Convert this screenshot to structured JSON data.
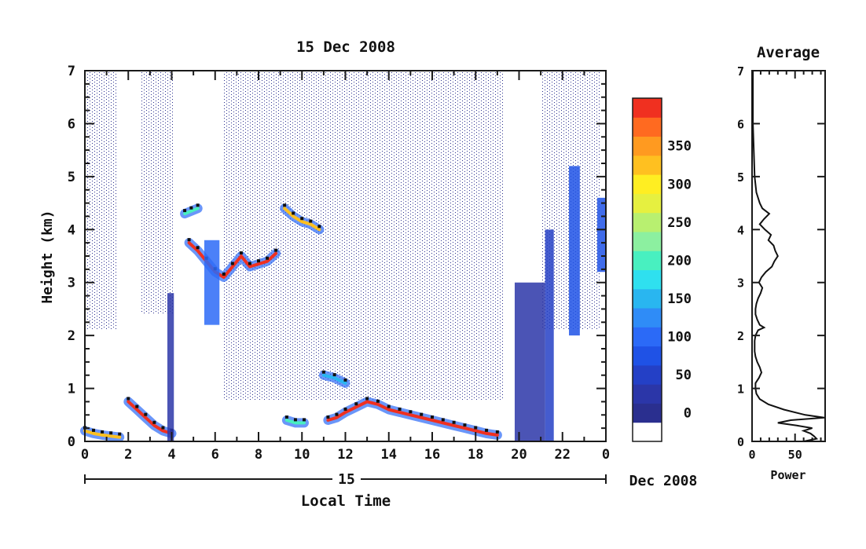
{
  "chart_data": [
    {
      "type": "heatmap",
      "title": "15 Dec 2008",
      "xlabel": "Local Time",
      "ylabel": "Height (km)",
      "xlim": [
        0,
        24
      ],
      "ylim": [
        0,
        7
      ],
      "x_tick_labels": [
        "0",
        "2",
        "4",
        "6",
        "8",
        "10",
        "12",
        "14",
        "16",
        "18",
        "20",
        "22",
        "0"
      ],
      "y_tick_labels": [
        "0",
        "1",
        "2",
        "3",
        "4",
        "5",
        "6",
        "7"
      ],
      "date_axis": {
        "day_label": "15",
        "month_label": "Dec 2008"
      },
      "colorbar": {
        "min": 0,
        "max": 380,
        "tick_values": [
          0,
          50,
          100,
          150,
          200,
          250,
          300,
          350
        ],
        "tick_labels": [
          "0",
          "50",
          "100",
          "150",
          "200",
          "250",
          "300",
          "350"
        ],
        "colors": [
          "#ffffff",
          "#2a2f8f",
          "#2b36a8",
          "#2440c6",
          "#1f52e6",
          "#2b6af7",
          "#2f8cf7",
          "#29b6f0",
          "#2fe0ef",
          "#48f0c0",
          "#8cf0a0",
          "#b8f070",
          "#e6f040",
          "#ffee22",
          "#ffc020",
          "#ff9a20",
          "#ff6a20",
          "#f03020"
        ]
      },
      "features": [
        {
          "kind": "layer",
          "x": [
            2.0,
            2.4,
            2.8,
            3.2,
            3.6,
            4.0
          ],
          "y": [
            0.75,
            0.6,
            0.45,
            0.3,
            0.2,
            0.15
          ],
          "level": 380
        },
        {
          "kind": "layer",
          "x": [
            0.0,
            0.4,
            0.8,
            1.2,
            1.6
          ],
          "y": [
            0.2,
            0.15,
            0.12,
            0.1,
            0.08
          ],
          "level": 300
        },
        {
          "kind": "layer",
          "x": [
            4.8,
            5.2,
            5.6,
            6.0,
            6.4,
            6.8,
            7.2,
            7.6,
            8.0,
            8.4,
            8.8
          ],
          "y": [
            3.75,
            3.6,
            3.4,
            3.2,
            3.1,
            3.3,
            3.5,
            3.3,
            3.35,
            3.4,
            3.55
          ],
          "level": 380
        },
        {
          "kind": "layer",
          "x": [
            4.6,
            4.9,
            5.2
          ],
          "y": [
            4.3,
            4.35,
            4.4
          ],
          "level": 200
        },
        {
          "kind": "layer",
          "x": [
            9.2,
            9.6,
            10.0,
            10.4,
            10.8
          ],
          "y": [
            4.4,
            4.25,
            4.15,
            4.1,
            4.0
          ],
          "level": 300
        },
        {
          "kind": "layer",
          "x": [
            11.2,
            11.6,
            12.0,
            12.5,
            13.0,
            13.5,
            14.0,
            14.5,
            15.0,
            15.5,
            16.0,
            16.5,
            17.0,
            17.5,
            18.0,
            18.5,
            19.0
          ],
          "y": [
            0.4,
            0.45,
            0.55,
            0.65,
            0.75,
            0.7,
            0.6,
            0.55,
            0.5,
            0.45,
            0.4,
            0.35,
            0.3,
            0.25,
            0.2,
            0.15,
            0.12
          ],
          "level": 380
        },
        {
          "kind": "layer",
          "x": [
            11.0,
            11.5,
            12.0
          ],
          "y": [
            1.25,
            1.2,
            1.1
          ],
          "level": 150
        },
        {
          "kind": "layer",
          "x": [
            9.3,
            9.7,
            10.1
          ],
          "y": [
            0.4,
            0.35,
            0.35
          ],
          "level": 200
        },
        {
          "kind": "column",
          "x0": 19.8,
          "x1": 21.2,
          "y0": 0.0,
          "y1": 3.0,
          "level": 60
        },
        {
          "kind": "column",
          "x0": 21.2,
          "x1": 21.6,
          "y0": 0.0,
          "y1": 4.0,
          "level": 80
        },
        {
          "kind": "column",
          "x0": 22.3,
          "x1": 22.8,
          "y0": 2.0,
          "y1": 5.2,
          "level": 90
        },
        {
          "kind": "column",
          "x0": 23.6,
          "x1": 24.0,
          "y0": 3.2,
          "y1": 4.6,
          "level": 100
        },
        {
          "kind": "column",
          "x0": 3.8,
          "x1": 4.1,
          "y0": 0.0,
          "y1": 2.8,
          "level": 60
        },
        {
          "kind": "column",
          "x0": 5.5,
          "x1": 6.2,
          "y0": 2.2,
          "y1": 3.8,
          "level": 120
        }
      ]
    },
    {
      "type": "line",
      "title": "Average",
      "xlabel": "Power",
      "ylabel": "",
      "xlim": [
        0,
        85
      ],
      "ylim": [
        0,
        7
      ],
      "x_tick_labels": [
        "0",
        "50"
      ],
      "y_tick_labels": [
        "0",
        "1",
        "2",
        "3",
        "4",
        "5",
        "6",
        "7"
      ],
      "series": [
        {
          "y": [
            7.0,
            6.5,
            6.0,
            5.5,
            5.0,
            4.7,
            4.5,
            4.4,
            4.3,
            4.2,
            4.1,
            4.0,
            3.9,
            3.8,
            3.7,
            3.6,
            3.5,
            3.4,
            3.3,
            3.2,
            3.1,
            3.0,
            2.9,
            2.8,
            2.7,
            2.6,
            2.5,
            2.4,
            2.3,
            2.2,
            2.15,
            2.1,
            2.0,
            1.9,
            1.8,
            1.7,
            1.6,
            1.5,
            1.4,
            1.3,
            1.2,
            1.1,
            1.0,
            0.9,
            0.8,
            0.7,
            0.6,
            0.5,
            0.45,
            0.4,
            0.35,
            0.3,
            0.25,
            0.2,
            0.15,
            0.1,
            0.05,
            0.0
          ],
          "x": [
            1,
            1,
            1,
            2,
            3,
            5,
            9,
            12,
            20,
            14,
            9,
            15,
            22,
            19,
            25,
            27,
            30,
            26,
            23,
            16,
            11,
            8,
            12,
            10,
            7,
            5,
            4,
            4,
            6,
            9,
            14,
            7,
            4,
            3,
            3,
            3,
            4,
            6,
            9,
            11,
            8,
            4,
            4,
            5,
            9,
            19,
            37,
            62,
            84,
            45,
            30,
            52,
            70,
            60,
            68,
            72,
            75,
            60
          ]
        }
      ]
    }
  ]
}
